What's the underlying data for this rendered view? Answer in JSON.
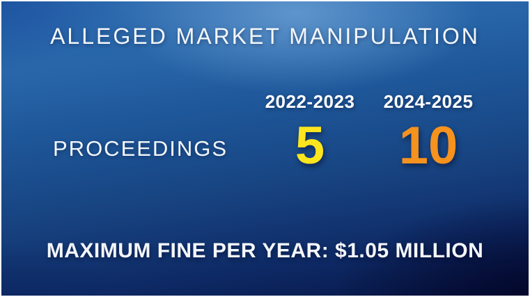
{
  "title": "ALLEGED MARKET MANIPULATION",
  "table": {
    "columns": [
      "2022-2023",
      "2024-2025"
    ],
    "rows": [
      {
        "label": "PROCEEDINGS",
        "values": [
          "5",
          "10"
        ]
      }
    ]
  },
  "footer": "MAXIMUM FINE PER YEAR: $1.05 MILLION",
  "colors": {
    "value_2022_2023": "#FBE51E",
    "value_2024_2025": "#F6921E",
    "text": "#FFFFFF",
    "bg_top_left": "#14499B",
    "bg_top_right": "#2A6AB3",
    "bg_center": "#16407E",
    "bg_bottom_left": "#0B2A67",
    "bg_bottom_right": "#04052D",
    "frame_edge": "#FFFFFF"
  },
  "chart_data": {
    "type": "table",
    "title": "ALLEGED MARKET MANIPULATION",
    "categories": [
      "2022-2023",
      "2024-2025"
    ],
    "series": [
      {
        "name": "PROCEEDINGS",
        "values": [
          5,
          10
        ]
      }
    ],
    "annotations": [
      "MAXIMUM FINE PER YEAR: $1.05 MILLION"
    ],
    "legend_position": "none",
    "grid": false
  }
}
